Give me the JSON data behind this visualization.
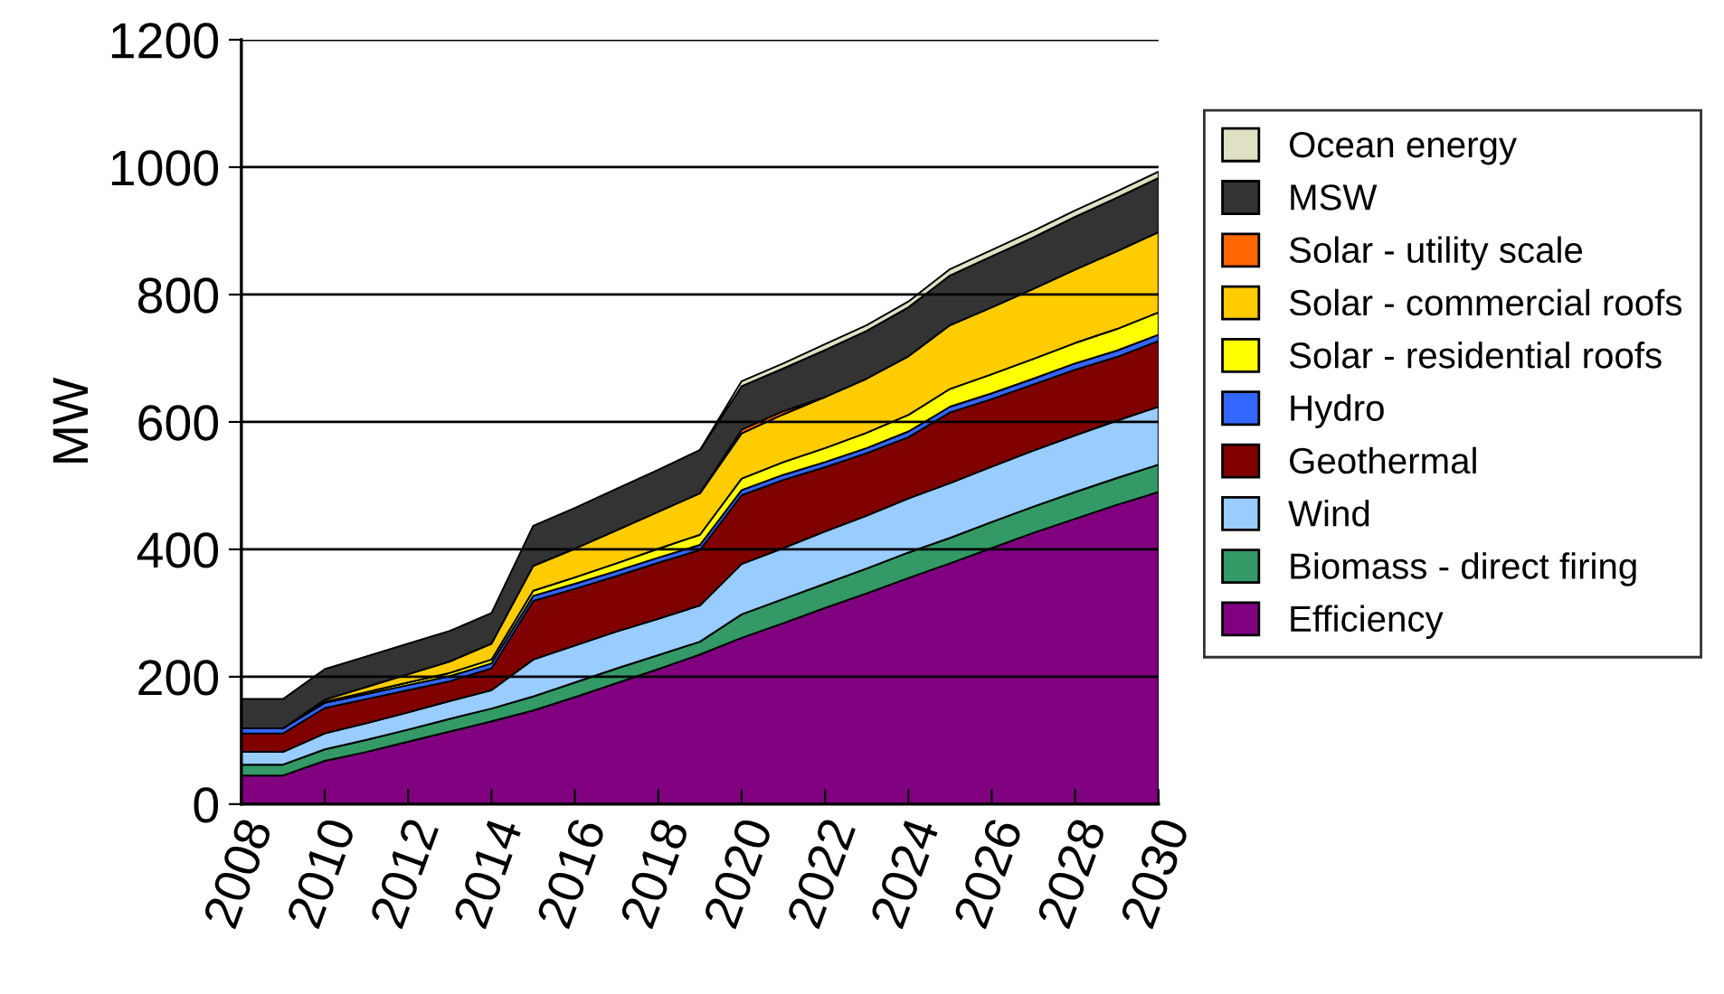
{
  "chart_data": {
    "type": "area",
    "stacked": true,
    "ylabel": "MW",
    "x": [
      2008,
      2009,
      2010,
      2011,
      2012,
      2013,
      2014,
      2015,
      2016,
      2017,
      2018,
      2019,
      2020,
      2021,
      2022,
      2023,
      2024,
      2025,
      2026,
      2027,
      2028,
      2029,
      2030
    ],
    "xlim": [
      2008,
      2030
    ],
    "xticks": [
      2008,
      2010,
      2012,
      2014,
      2016,
      2018,
      2020,
      2022,
      2024,
      2026,
      2028,
      2030
    ],
    "ylim": [
      0,
      1200
    ],
    "yticks": [
      0,
      200,
      400,
      600,
      800,
      1000,
      1200
    ],
    "grid": "y",
    "legend": "right",
    "series": [
      {
        "name": "Efficiency",
        "color": "#800080",
        "values": [
          45,
          45,
          68,
          82,
          98,
          114,
          130,
          147,
          168,
          190,
          212,
          235,
          261,
          284,
          308,
          331,
          355,
          378,
          402,
          426,
          448,
          470,
          490
        ]
      },
      {
        "name": "Biomass - direct firing",
        "color": "#339966",
        "values": [
          17,
          17,
          18,
          19,
          19,
          20,
          20,
          22,
          23,
          23,
          22,
          20,
          37,
          38,
          38,
          39,
          40,
          40,
          41,
          41,
          42,
          42,
          43
        ]
      },
      {
        "name": "Wind",
        "color": "#99ccff",
        "values": [
          20,
          20,
          25,
          26,
          27,
          28,
          29,
          58,
          58,
          58,
          57,
          57,
          79,
          80,
          82,
          83,
          85,
          86,
          87,
          88,
          89,
          90,
          91
        ]
      },
      {
        "name": "Geothermal",
        "color": "#800000",
        "values": [
          29,
          29,
          40,
          38,
          35,
          31,
          34,
          92,
          89,
          87,
          88,
          87,
          108,
          107,
          101,
          98,
          96,
          111,
          106,
          104,
          103,
          100,
          103
        ]
      },
      {
        "name": "Hydro",
        "color": "#3366ff",
        "values": [
          8,
          8,
          8,
          8,
          8,
          8,
          8,
          8,
          8,
          8,
          8,
          8,
          8,
          8,
          8,
          8,
          9,
          9,
          9,
          9,
          10,
          10,
          10
        ]
      },
      {
        "name": "Solar - residential roofs",
        "color": "#ffff00",
        "values": [
          0,
          0,
          2,
          3,
          4,
          5,
          6,
          8,
          10,
          12,
          14,
          16,
          18,
          20,
          22,
          24,
          26,
          28,
          30,
          31,
          32,
          34,
          35
        ]
      },
      {
        "name": "Solar - commercial roofs",
        "color": "#ffcc00",
        "values": [
          0,
          0,
          3,
          8,
          13,
          18,
          25,
          39,
          45,
          52,
          58,
          65,
          71,
          75,
          80,
          85,
          92,
          100,
          105,
          110,
          115,
          122,
          126
        ]
      },
      {
        "name": "Solar - utility scale",
        "color": "#ff6600",
        "values": [
          null,
          null,
          null,
          null,
          null,
          null,
          null,
          null,
          null,
          null,
          null,
          0,
          6,
          5,
          0,
          null,
          null,
          null,
          null,
          null,
          null,
          null,
          null
        ]
      },
      {
        "name": "MSW",
        "color": "#333333",
        "values": [
          46,
          46,
          48,
          48,
          48,
          48,
          48,
          63,
          64,
          65,
          66,
          68,
          68,
          67,
          74,
          75,
          77,
          78,
          80,
          81,
          83,
          84,
          85
        ]
      },
      {
        "name": "Ocean energy",
        "color": "#e0e0c4",
        "values": [
          null,
          null,
          null,
          null,
          null,
          null,
          null,
          null,
          null,
          null,
          null,
          0,
          8,
          8,
          9,
          9,
          9,
          10,
          10,
          10,
          10,
          10,
          10
        ]
      }
    ]
  }
}
